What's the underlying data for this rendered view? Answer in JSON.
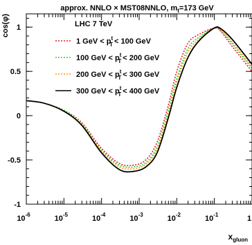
{
  "chart_data": {
    "type": "line",
    "title": "approx. NNLO × MST08NNLO, m",
    "title_sub": "t",
    "title_tail": "=173 GeV",
    "ylabel": "cos(φ)",
    "xlabel": "x",
    "xlabel_sub": "gluon",
    "x_scale": "log",
    "xlim": [
      1e-06,
      1
    ],
    "ylim": [
      -1,
      1.15
    ],
    "grid": false,
    "legend_placement": "top-left",
    "legend_header": "LHC 7 TeV",
    "x_ticks": [
      {
        "base": "10",
        "exp": "-6",
        "value": 1e-06
      },
      {
        "base": "10",
        "exp": "-5",
        "value": 1e-05
      },
      {
        "base": "10",
        "exp": "-4",
        "value": 0.0001
      },
      {
        "base": "10",
        "exp": "-3",
        "value": 0.001
      },
      {
        "base": "10",
        "exp": "-2",
        "value": 0.01
      },
      {
        "base": "10",
        "exp": "-1",
        "value": 0.1
      },
      {
        "base": "1",
        "exp": "",
        "value": 1
      }
    ],
    "y_ticks": [
      {
        "label": "-1",
        "value": -1
      },
      {
        "label": "-0.5",
        "value": -0.5
      },
      {
        "label": "0",
        "value": 0
      },
      {
        "label": "0.5",
        "value": 0.5
      },
      {
        "label": "1",
        "value": 1
      }
    ],
    "series": [
      {
        "name": "1 GeV < p_T^t < 100 GeV",
        "label_parts": [
          "1 GeV < p",
          "t",
          "T",
          "< 100 GeV"
        ],
        "color": "#e8192c",
        "dash": "2,2",
        "x": [
          1e-06,
          3e-06,
          1e-05,
          3e-05,
          0.0001,
          0.0003,
          0.0007,
          0.0015,
          0.003,
          0.006,
          0.01,
          0.02,
          0.04,
          0.1,
          0.15,
          0.3,
          1
        ],
        "y": [
          0.17,
          0.14,
          0.06,
          -0.08,
          -0.37,
          -0.54,
          -0.56,
          -0.5,
          -0.3,
          0.12,
          0.5,
          0.82,
          0.92,
          0.99,
          0.95,
          0.78,
          0.5
        ]
      },
      {
        "name": "100 GeV < p_T^t < 200 GeV",
        "label_parts": [
          "100 GeV < p",
          "t",
          "T",
          "< 200 GeV"
        ],
        "color": "#32cd32",
        "dash": "2,2",
        "x": [
          1e-06,
          3e-06,
          1e-05,
          3e-05,
          0.0001,
          0.0003,
          0.0007,
          0.0015,
          0.003,
          0.006,
          0.01,
          0.02,
          0.04,
          0.1,
          0.15,
          0.3,
          1
        ],
        "y": [
          0.17,
          0.14,
          0.06,
          -0.09,
          -0.39,
          -0.56,
          -0.58,
          -0.53,
          -0.35,
          0.06,
          0.42,
          0.76,
          0.89,
          0.99,
          0.96,
          0.81,
          0.53
        ]
      },
      {
        "name": "200 GeV < p_T^t < 300 GeV",
        "label_parts": [
          "200 GeV < p",
          "t",
          "T",
          "< 300 GeV"
        ],
        "color": "#ff9900",
        "dash": "2,2",
        "x": [
          1e-06,
          3e-06,
          1e-05,
          3e-05,
          0.0001,
          0.0003,
          0.0007,
          0.0015,
          0.003,
          0.006,
          0.01,
          0.02,
          0.04,
          0.1,
          0.15,
          0.3,
          1
        ],
        "y": [
          0.17,
          0.14,
          0.05,
          -0.1,
          -0.4,
          -0.58,
          -0.6,
          -0.55,
          -0.38,
          0.02,
          0.38,
          0.72,
          0.87,
          0.99,
          0.97,
          0.83,
          0.55
        ]
      },
      {
        "name": "300 GeV < p_T^t < 400 GeV",
        "label_parts": [
          "300 GeV < p",
          "t",
          "T",
          "< 400 GeV"
        ],
        "color": "#000000",
        "dash": "",
        "x": [
          1e-06,
          3e-06,
          1e-05,
          3e-05,
          0.0001,
          0.0003,
          0.0007,
          0.0015,
          0.003,
          0.006,
          0.01,
          0.02,
          0.04,
          0.1,
          0.15,
          0.3,
          1
        ],
        "y": [
          0.17,
          0.14,
          0.05,
          -0.11,
          -0.42,
          -0.61,
          -0.63,
          -0.58,
          -0.42,
          -0.02,
          0.32,
          0.66,
          0.85,
          0.99,
          0.98,
          0.86,
          0.58
        ]
      }
    ]
  }
}
